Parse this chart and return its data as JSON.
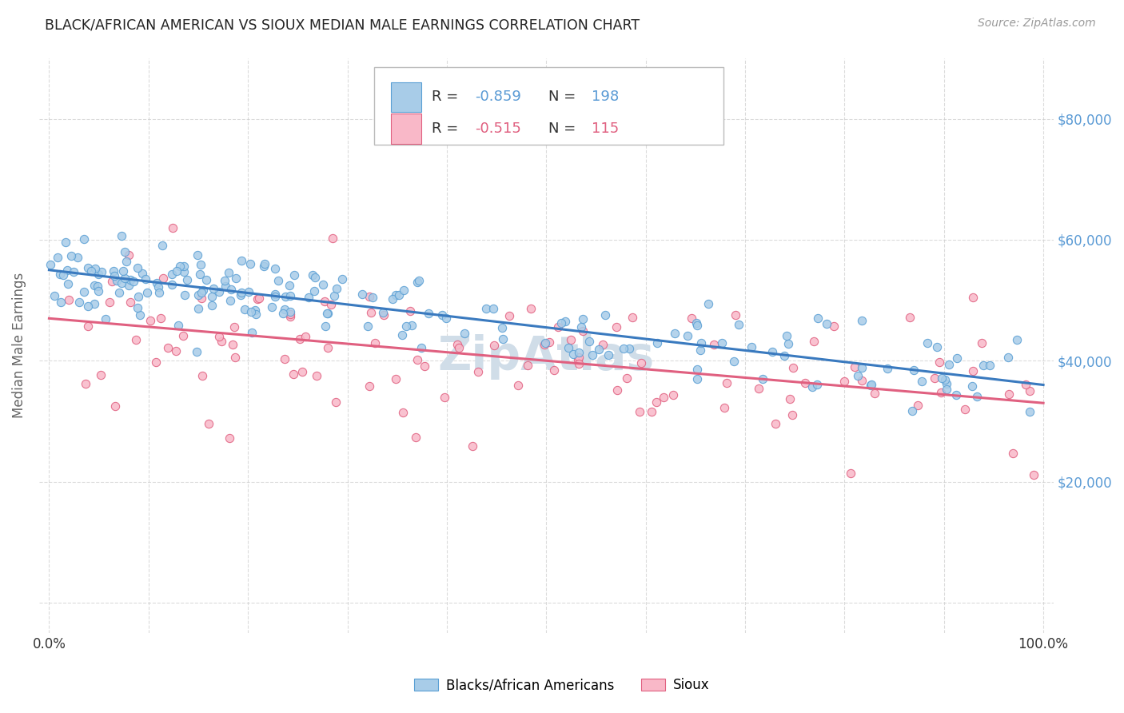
{
  "title": "BLACK/AFRICAN AMERICAN VS SIOUX MEDIAN MALE EARNINGS CORRELATION CHART",
  "source": "Source: ZipAtlas.com",
  "ylabel": "Median Male Earnings",
  "blue_R": -0.859,
  "blue_N": 198,
  "pink_R": -0.515,
  "pink_N": 115,
  "blue_scatter_color": "#a8cce8",
  "blue_edge_color": "#5a9fd4",
  "pink_scatter_color": "#f9b8c8",
  "pink_edge_color": "#e06080",
  "blue_line_color": "#3a7abf",
  "pink_line_color": "#e06080",
  "yaxis_label_color": "#5b9bd5",
  "title_color": "#222222",
  "source_color": "#999999",
  "legend_label_blue": "Blacks/African Americans",
  "legend_label_pink": "Sioux",
  "ylim": [
    -5000,
    90000
  ],
  "xlim": [
    -0.01,
    1.01
  ],
  "ytick_vals": [
    0,
    20000,
    40000,
    60000,
    80000
  ],
  "ytick_labels": [
    "",
    "$20,000",
    "$40,000",
    "$60,000",
    "$80,000"
  ],
  "blue_intercept": 55000,
  "blue_slope": -19000,
  "pink_intercept": 47000,
  "pink_slope": -14000,
  "background_color": "#ffffff",
  "grid_color": "#cccccc",
  "watermark_color": "#d0dde8",
  "seed": 42
}
